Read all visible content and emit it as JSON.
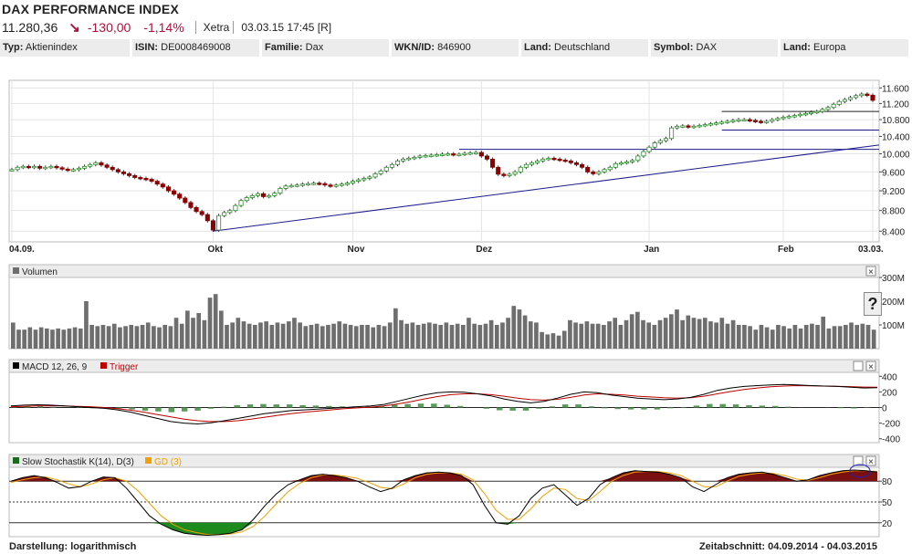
{
  "header": {
    "title": "DAX PERFORMANCE INDEX",
    "last": "11.280,36",
    "arrow": "↘",
    "change": "-130,00",
    "change_pct": "-1,14%",
    "exchange": "Xetra",
    "timestamp": "03.03.15 17:45 [R]"
  },
  "info": [
    {
      "k": "Typ:",
      "v": "Aktienindex"
    },
    {
      "k": "ISIN:",
      "v": "DE0008469008"
    },
    {
      "k": "Familie:",
      "v": "Dax"
    },
    {
      "k": "WKN/ID:",
      "v": "846900"
    },
    {
      "k": "Land:",
      "v": "Deutschland"
    },
    {
      "k": "Symbol:",
      "v": "DAX"
    },
    {
      "k": "Land:",
      "v": "Europa"
    }
  ],
  "colors": {
    "up": "#2e8b2e",
    "down": "#8b0000",
    "trend": "#1c1c8c",
    "macd": "#000000",
    "trigger": "#c00000",
    "hist": "#5a9a5a",
    "stoch_k": "#000000",
    "stoch_d": "#f0a000",
    "stoch_fill_hi": "#7a1010",
    "stoch_fill_lo": "#1c8a1c",
    "vol": "#6e6e6e"
  },
  "footer": {
    "display": "Darstellung: logarithmisch",
    "period": "Zeitabschnitt: 04.09.2014 - 04.03.2015"
  },
  "help_label": "?",
  "chart_data": [
    {
      "type": "candlestick",
      "panel": "price",
      "yticks": [
        "11.600",
        "11.200",
        "10.800",
        "10.400",
        "10.000",
        "9.600",
        "9.200",
        "8.800",
        "8.400"
      ],
      "ytick_values": [
        11600,
        11200,
        10800,
        10400,
        10000,
        9600,
        9200,
        8800,
        8400
      ],
      "ylim": [
        8200,
        11800
      ],
      "xticks": [
        "04.09.",
        "Okt",
        "Nov",
        "Dez",
        "Jan",
        "Feb",
        "03.03."
      ],
      "close": [
        9650,
        9700,
        9720,
        9700,
        9720,
        9680,
        9700,
        9720,
        9690,
        9660,
        9640,
        9650,
        9680,
        9720,
        9760,
        9800,
        9750,
        9700,
        9650,
        9600,
        9560,
        9520,
        9480,
        9460,
        9440,
        9400,
        9340,
        9280,
        9200,
        9130,
        9050,
        8960,
        8860,
        8780,
        8720,
        8600,
        8420,
        8700,
        8760,
        8800,
        8900,
        9000,
        9060,
        9100,
        9140,
        9080,
        9100,
        9150,
        9250,
        9300,
        9310,
        9320,
        9340,
        9350,
        9360,
        9350,
        9320,
        9300,
        9320,
        9340,
        9360,
        9400,
        9430,
        9460,
        9490,
        9560,
        9620,
        9700,
        9760,
        9840,
        9880,
        9900,
        9920,
        9950,
        9960,
        9970,
        9980,
        9990,
        10000,
        9980,
        9990,
        10010,
        10020,
        10030,
        9950,
        9880,
        9700,
        9550,
        9520,
        9550,
        9600,
        9700,
        9760,
        9800,
        9840,
        9880,
        9900,
        9880,
        9860,
        9840,
        9800,
        9760,
        9700,
        9600,
        9560,
        9600,
        9650,
        9700,
        9780,
        9800,
        9820,
        9850,
        9950,
        10050,
        10150,
        10250,
        10300,
        10350,
        10600,
        10640,
        10650,
        10620,
        10640,
        10660,
        10680,
        10700,
        10720,
        10740,
        10760,
        10780,
        10800,
        10800,
        10780,
        10760,
        10740,
        10760,
        10800,
        10830,
        10860,
        10880,
        10900,
        10930,
        10950,
        10980,
        11000,
        11050,
        11100,
        11180,
        11250,
        11300,
        11350,
        11400,
        11440,
        11410,
        11280
      ]
    },
    {
      "type": "bar",
      "panel": "volume",
      "title": "Volumen",
      "yticks": [
        "300M",
        "200M",
        "100M"
      ],
      "ytick_values": [
        300,
        200,
        100
      ],
      "ylim": [
        0,
        300
      ],
      "unit": "M",
      "values": [
        110,
        80,
        80,
        90,
        80,
        90,
        85,
        80,
        85,
        80,
        85,
        90,
        85,
        200,
        100,
        95,
        100,
        95,
        105,
        90,
        95,
        100,
        95,
        100,
        110,
        95,
        90,
        100,
        95,
        130,
        105,
        160,
        130,
        150,
        120,
        215,
        230,
        160,
        100,
        110,
        130,
        115,
        105,
        100,
        110,
        115,
        100,
        110,
        105,
        115,
        130,
        110,
        95,
        100,
        105,
        95,
        100,
        105,
        115,
        105,
        100,
        95,
        100,
        100,
        90,
        100,
        95,
        110,
        170,
        120,
        105,
        110,
        100,
        105,
        110,
        105,
        100,
        110,
        100,
        105,
        100,
        130,
        105,
        100,
        105,
        120,
        100,
        110,
        130,
        180,
        165,
        140,
        115,
        110,
        70,
        60,
        65,
        55,
        75,
        120,
        110,
        105,
        115,
        105,
        105,
        100,
        115,
        130,
        100,
        120,
        145,
        155,
        120,
        110,
        100,
        120,
        130,
        145,
        165,
        120,
        140,
        130,
        125,
        130,
        115,
        110,
        130,
        105,
        120,
        100,
        100,
        95,
        80,
        100,
        90,
        80,
        100,
        95,
        85,
        100,
        85,
        100,
        105,
        100,
        135,
        85,
        95,
        95,
        100,
        110,
        100,
        105,
        100,
        80
      ]
    },
    {
      "type": "line",
      "panel": "macd",
      "title": "MACD 12, 26, 9",
      "legend": [
        "MACD 12, 26, 9",
        "Trigger"
      ],
      "yticks": [
        "400",
        "200",
        "0",
        "-200",
        "-400"
      ],
      "ytick_values": [
        400,
        200,
        0,
        -200,
        -400
      ],
      "ylim": [
        -450,
        450
      ],
      "series": [
        {
          "name": "MACD 12, 26, 9",
          "values": [
            20,
            30,
            35,
            30,
            20,
            10,
            0,
            -10,
            -30,
            -60,
            -100,
            -140,
            -180,
            -200,
            -210,
            -195,
            -170,
            -140,
            -110,
            -80,
            -60,
            -40,
            -30,
            -20,
            -10,
            0,
            10,
            20,
            40,
            80,
            120,
            160,
            190,
            200,
            195,
            175,
            150,
            110,
            80,
            60,
            80,
            120,
            170,
            200,
            190,
            160,
            140,
            120,
            110,
            100,
            110,
            130,
            170,
            220,
            250,
            270,
            280,
            290,
            295,
            290,
            280,
            275,
            270,
            260,
            250,
            255
          ]
        },
        {
          "name": "Trigger",
          "values": [
            10,
            15,
            20,
            22,
            20,
            15,
            10,
            0,
            -15,
            -35,
            -60,
            -90,
            -120,
            -150,
            -170,
            -180,
            -180,
            -170,
            -150,
            -125,
            -100,
            -80,
            -60,
            -45,
            -30,
            -15,
            -5,
            5,
            20,
            45,
            75,
            110,
            140,
            165,
            175,
            175,
            165,
            145,
            120,
            100,
            95,
            105,
            130,
            160,
            175,
            170,
            160,
            145,
            135,
            125,
            120,
            125,
            145,
            175,
            205,
            230,
            250,
            265,
            275,
            280,
            278,
            275,
            272,
            268,
            262,
            260
          ]
        },
        {
          "name": "Histogram",
          "values": [
            10,
            15,
            15,
            8,
            0,
            -5,
            -10,
            -10,
            -15,
            -25,
            -40,
            -50,
            -60,
            -50,
            -40,
            -15,
            10,
            30,
            40,
            45,
            40,
            40,
            30,
            25,
            20,
            15,
            15,
            15,
            20,
            35,
            45,
            50,
            50,
            35,
            20,
            0,
            -15,
            -35,
            -40,
            -40,
            -15,
            15,
            40,
            40,
            15,
            -10,
            -20,
            -25,
            -25,
            -25,
            -10,
            5,
            25,
            45,
            45,
            40,
            30,
            25,
            20,
            10,
            2,
            0,
            -2,
            -8,
            -12,
            -5
          ]
        }
      ]
    },
    {
      "type": "line",
      "panel": "stochastic",
      "title": "Slow Stochastik K(14), D(3)",
      "legend": [
        "Slow Stochastik K(14), D(3)",
        "GD (3)"
      ],
      "yticks": [
        "80",
        "50",
        "20"
      ],
      "ytick_values": [
        80,
        50,
        20
      ],
      "ylim": [
        0,
        100
      ],
      "series": [
        {
          "name": "Slow Stochastik K(14), D(3)",
          "values": [
            80,
            85,
            88,
            85,
            78,
            70,
            72,
            80,
            86,
            85,
            70,
            50,
            30,
            18,
            10,
            5,
            3,
            2,
            3,
            5,
            10,
            25,
            45,
            62,
            75,
            82,
            88,
            90,
            88,
            85,
            80,
            72,
            65,
            70,
            82,
            88,
            92,
            93,
            92,
            88,
            75,
            45,
            20,
            18,
            30,
            55,
            70,
            75,
            60,
            45,
            55,
            75,
            85,
            92,
            95,
            94,
            93,
            90,
            85,
            72,
            65,
            75,
            85,
            90,
            92,
            93,
            90,
            85,
            80,
            82,
            88,
            92,
            95,
            96,
            95,
            93
          ]
        },
        {
          "name": "GD (3)",
          "values": [
            78,
            82,
            85,
            86,
            82,
            76,
            72,
            76,
            82,
            85,
            80,
            66,
            48,
            30,
            18,
            10,
            6,
            3,
            3,
            4,
            7,
            15,
            30,
            48,
            65,
            77,
            85,
            89,
            89,
            87,
            84,
            78,
            71,
            69,
            76,
            85,
            90,
            92,
            92,
            90,
            82,
            62,
            38,
            25,
            25,
            40,
            58,
            70,
            68,
            55,
            52,
            65,
            80,
            88,
            93,
            94,
            94,
            92,
            88,
            80,
            72,
            72,
            80,
            87,
            90,
            92,
            91,
            88,
            83,
            81,
            85,
            90,
            93,
            95,
            95,
            94
          ]
        }
      ]
    }
  ]
}
